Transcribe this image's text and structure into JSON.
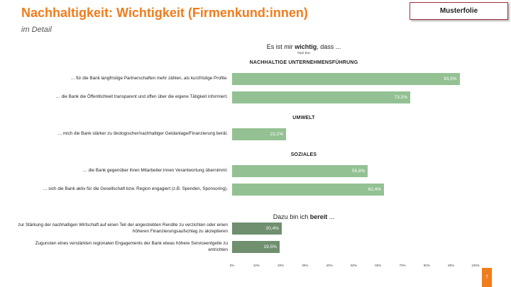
{
  "header": {
    "title": "Nachhaltigkeit: Wichtigkeit (Firmenkund:innen)",
    "subtitle": "im Detail",
    "badge": "Musterfolie"
  },
  "page_number": "7",
  "chart_data": {
    "type": "bar",
    "orientation": "horizontal",
    "xlim": [
      0,
      100
    ],
    "xticks": [
      {
        "value": 0,
        "label": "0%"
      },
      {
        "value": 10,
        "label": "10%"
      },
      {
        "value": 20,
        "label": "20%"
      },
      {
        "value": 30,
        "label": "30%"
      },
      {
        "value": 40,
        "label": "40%"
      },
      {
        "value": 50,
        "label": "50%"
      },
      {
        "value": 60,
        "label": "60%"
      },
      {
        "value": 70,
        "label": "70%"
      },
      {
        "value": 80,
        "label": "80%"
      },
      {
        "value": 90,
        "label": "90%"
      },
      {
        "value": 100,
        "label": "100%"
      }
    ],
    "blocks": [
      {
        "heading": [
          "Es ist mir ",
          "wichtig",
          ", dass ..."
        ],
        "note": "Top2 Box",
        "groups": [
          {
            "label": "NACHHALTIGE UNTERNEHMENSFÜHRUNG",
            "color": "#93c193",
            "categories": [
              "… für die Bank langfristige Partnerschaften mehr zählen, als kurzfristige Profite.",
              "… die Bank die Öffentlichkeit transparent und offen über die eigene Tätigkeit informiert."
            ],
            "values": [
              93.5,
              73.2
            ],
            "value_labels": [
              "93,5%",
              "73,2%"
            ]
          },
          {
            "label": "UMWELT",
            "color": "#93c193",
            "categories": [
              "… mich die Bank stärker zu ökologischer/nachhaltiger Geldanlage/Finanzierung berät."
            ],
            "values": [
              22.2
            ],
            "value_labels": [
              "22,2%"
            ]
          },
          {
            "label": "SOZIALES",
            "color": "#93c193",
            "categories": [
              "… die Bank gegenüber ihren Mitarbeiter:innen Verantwortung übernimmt.",
              "… sich die Bank aktiv für die Gesellschaft bzw. Region engagiert (z.B. Spenden, Sponsoring)."
            ],
            "values": [
              55.8,
              62.4
            ],
            "value_labels": [
              "55,8%",
              "62,4%"
            ]
          }
        ]
      },
      {
        "heading": [
          "Dazu bin ich ",
          "bereit",
          " ..."
        ],
        "groups": [
          {
            "color": "#6f8f6f",
            "categories": [
              "zur Stärkung der nachhaltigen Wirtschaft auf einen Teil der angestrebten Rendite zu verzichten oder einen höheren Finanzierungsaufschlag zu akzeptieren",
              "Zugunsten eines verstärkten regionalen Engagements der Bank etwas höhere Serviceentgelte zu entrichten"
            ],
            "values": [
              20.4,
              19.5
            ],
            "value_labels": [
              "20,4%",
              "19,5%"
            ]
          }
        ]
      }
    ]
  }
}
